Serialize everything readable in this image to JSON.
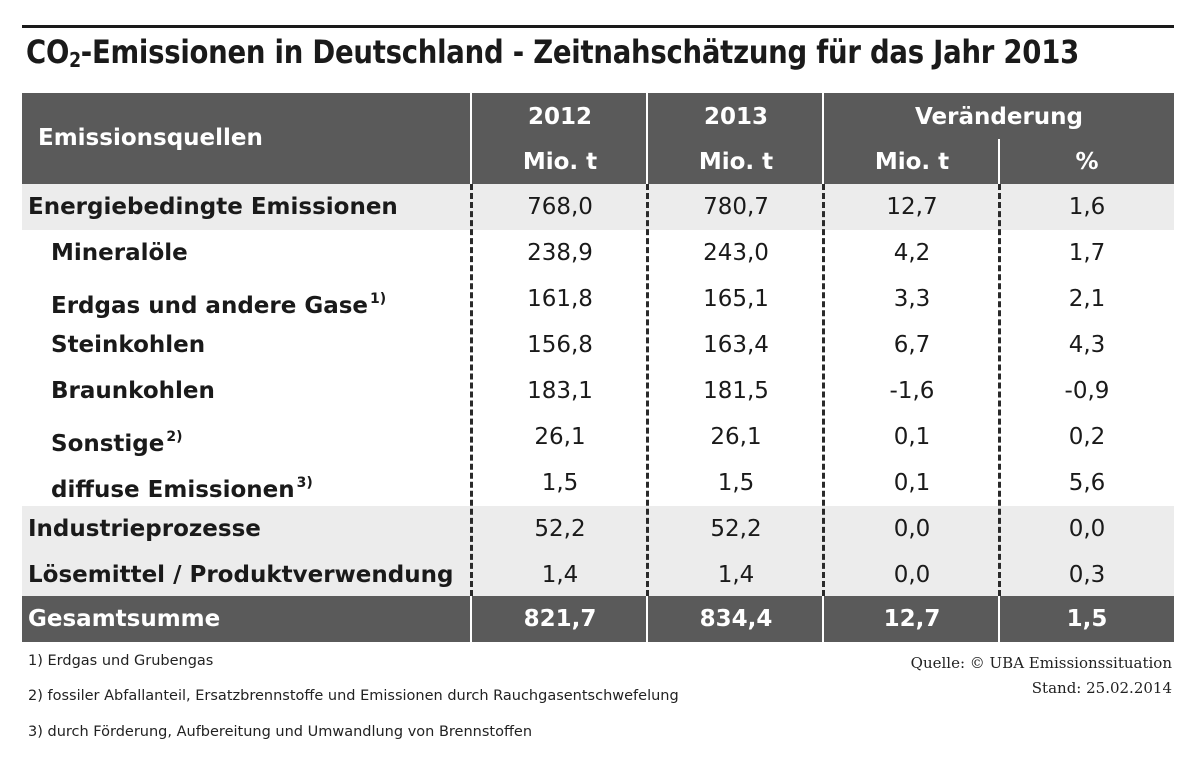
{
  "title": {
    "prefix": "CO",
    "subscript": "2",
    "rest": "-Emissionen in Deutschland - Zeitnahschätzung für das Jahr 2013"
  },
  "header": {
    "source_col": "Emissionsquellen",
    "year1": "2012",
    "year2": "2013",
    "change": "Veränderung",
    "unit1": "Mio. t",
    "unit2": "Mio. t",
    "unit3": "Mio. t",
    "unit4": "%"
  },
  "rows": [
    {
      "label": "Energiebedingte Emissionen",
      "fn": "",
      "v2012": "768,0",
      "v2013": "780,7",
      "dmio": "12,7",
      "dpct": "1,6"
    },
    {
      "label": "Mineralöle",
      "fn": "",
      "v2012": "238,9",
      "v2013": "243,0",
      "dmio": "4,2",
      "dpct": "1,7"
    },
    {
      "label": "Erdgas und andere Gase",
      "fn": "1)",
      "v2012": "161,8",
      "v2013": "165,1",
      "dmio": "3,3",
      "dpct": "2,1"
    },
    {
      "label": "Steinkohlen",
      "fn": "",
      "v2012": "156,8",
      "v2013": "163,4",
      "dmio": "6,7",
      "dpct": "4,3"
    },
    {
      "label": "Braunkohlen",
      "fn": "",
      "v2012": "183,1",
      "v2013": "181,5",
      "dmio": "-1,6",
      "dpct": "-0,9"
    },
    {
      "label": "Sonstige",
      "fn": "2)",
      "v2012": "26,1",
      "v2013": "26,1",
      "dmio": "0,1",
      "dpct": "0,2"
    },
    {
      "label": "diffuse Emissionen",
      "fn": "3)",
      "v2012": "1,5",
      "v2013": "1,5",
      "dmio": "0,1",
      "dpct": "5,6"
    },
    {
      "label": "Industrieprozesse",
      "fn": "",
      "v2012": "52,2",
      "v2013": "52,2",
      "dmio": "0,0",
      "dpct": "0,0"
    },
    {
      "label": "Lösemittel / Produktverwendung",
      "fn": "",
      "v2012": "1,4",
      "v2013": "1,4",
      "dmio": "0,0",
      "dpct": "0,3"
    }
  ],
  "total": {
    "label": "Gesamtsumme",
    "v2012": "821,7",
    "v2013": "834,4",
    "dmio": "12,7",
    "dpct": "1,5"
  },
  "footnotes": [
    "1)  Erdgas und Grubengas",
    "2)  fossiler Abfallanteil, Ersatzbrennstoffe und Emissionen durch Rauchgasentschwefelung",
    "3)  durch Förderung, Aufbereitung und Umwandlung von Brennstoffen"
  ],
  "source": {
    "line1": "Quelle: © UBA Emissionssituation",
    "line2": "Stand: 25.02.2014"
  },
  "colors": {
    "header_bg": "#5a5a5a",
    "shade_row": "#ececec",
    "text": "#1a1a1a"
  }
}
